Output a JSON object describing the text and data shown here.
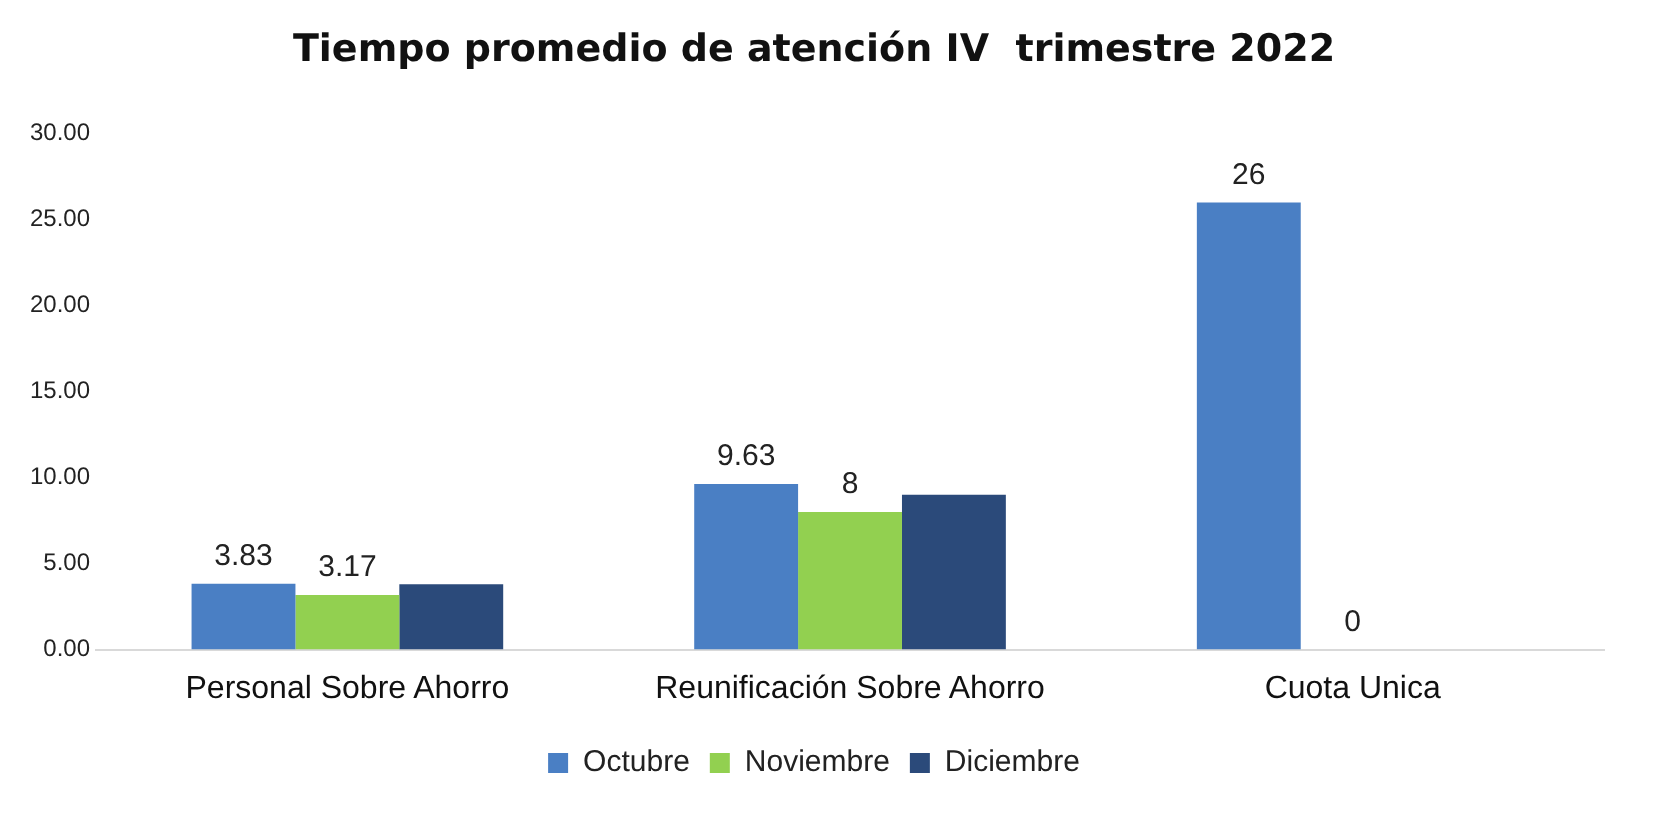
{
  "chart_data": {
    "type": "bar",
    "title": "Tiempo promedio de atención IV  trimestre 2022",
    "categories": [
      "Personal Sobre Ahorro",
      "Reunificación Sobre Ahorro",
      "Cuota Unica"
    ],
    "series": [
      {
        "name": "Octubre",
        "color": "#4a7fc4",
        "values": [
          3.83,
          9.63,
          26
        ],
        "value_labels": [
          "3.83",
          "9.63",
          "26"
        ]
      },
      {
        "name": "Noviembre",
        "color": "#92d050",
        "values": [
          3.17,
          8,
          0
        ],
        "value_labels": [
          "3.17",
          "8",
          "0"
        ]
      },
      {
        "name": "Diciembre",
        "color": "#2b4a7a",
        "values": [
          3.8,
          9.0,
          null
        ]
      }
    ],
    "ylim": [
      0,
      30
    ],
    "yticks": [
      {
        "value": 0,
        "label": "0.00"
      },
      {
        "value": 5,
        "label": "5.00"
      },
      {
        "value": 10,
        "label": "10.00"
      },
      {
        "value": 15,
        "label": "15.00"
      },
      {
        "value": 20,
        "label": "20.00"
      },
      {
        "value": 25,
        "label": "25.00"
      },
      {
        "value": 30,
        "label": "30.00"
      }
    ],
    "grid": false,
    "legend": "bottom"
  }
}
